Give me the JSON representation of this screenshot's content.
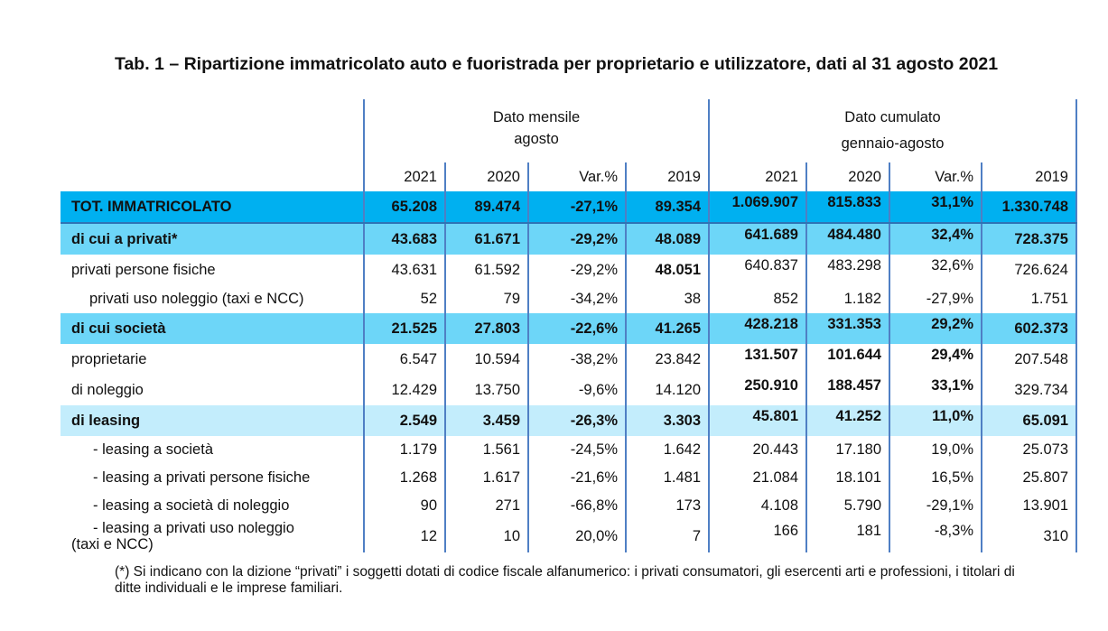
{
  "title": "Tab. 1 – Ripartizione immatricolato auto e fuoristrada per proprietario e utilizzatore, dati al 31 agosto 2021",
  "header": {
    "monthly": "Dato mensile agosto",
    "monthly_l1": "Dato mensile",
    "monthly_l2": "agosto",
    "cumulative_l1": "Dato cumulato",
    "cumulative_l2": "gennaio-agosto",
    "columns": [
      "2021",
      "2020",
      "Var.%",
      "2019",
      "2021",
      "2020",
      "Var.%",
      "2019"
    ]
  },
  "rows": [
    {
      "label": "TOT. IMMATRICOLATO",
      "style": "tot",
      "values": [
        "65.208",
        "89.474",
        "-27,1%",
        "89.354",
        "1.069.907",
        "815.833",
        "31,1%",
        "1.330.748"
      ]
    },
    {
      "label": "di cui a privati*",
      "style": "mid",
      "values": [
        "43.683",
        "61.671",
        "-29,2%",
        "48.089",
        "641.689",
        "484.480",
        "32,4%",
        "728.375"
      ]
    },
    {
      "label": "privati persone fisiche",
      "style": "",
      "values": [
        "43.631",
        "61.592",
        "-29,2%",
        "48.051",
        "640.837",
        "483.298",
        "32,6%",
        "726.624"
      ]
    },
    {
      "label": "privati uso noleggio (taxi e NCC)",
      "style": "ind1",
      "values": [
        "52",
        "79",
        "-34,2%",
        "38",
        "852",
        "1.182",
        "-27,9%",
        "1.751"
      ]
    },
    {
      "label": "di cui società",
      "style": "mid",
      "values": [
        "21.525",
        "27.803",
        "-22,6%",
        "41.265",
        "428.218",
        "331.353",
        "29,2%",
        "602.373"
      ]
    },
    {
      "label": "proprietarie",
      "style": "",
      "values": [
        "6.547",
        "10.594",
        "-38,2%",
        "23.842",
        "131.507",
        "101.644",
        "29,4%",
        "207.548"
      ]
    },
    {
      "label": "di noleggio",
      "style": "",
      "values": [
        "12.429",
        "13.750",
        "-9,6%",
        "14.120",
        "250.910",
        "188.457",
        "33,1%",
        "329.734"
      ]
    },
    {
      "label": "di leasing",
      "style": "light",
      "values": [
        "2.549",
        "3.459",
        "-26,3%",
        "3.303",
        "45.801",
        "41.252",
        "11,0%",
        "65.091"
      ]
    },
    {
      "label": "- leasing a società",
      "style": "ind2",
      "values": [
        "1.179",
        "1.561",
        "-24,5%",
        "1.642",
        "20.443",
        "17.180",
        "19,0%",
        "25.073"
      ]
    },
    {
      "label": "- leasing a privati persone fisiche",
      "style": "ind2",
      "values": [
        "1.268",
        "1.617",
        "-21,6%",
        "1.481",
        "21.084",
        "18.101",
        "16,5%",
        "25.807"
      ]
    },
    {
      "label": "- leasing a società di noleggio",
      "style": "ind2",
      "values": [
        "90",
        "271",
        "-66,8%",
        "173",
        "4.108",
        "5.790",
        "-29,1%",
        "13.901"
      ]
    },
    {
      "label": "- leasing a privati uso noleggio (taxi e NCC)",
      "label_l1": "- leasing a privati uso noleggio",
      "label_l2": "(taxi e NCC)",
      "style": "double",
      "values": [
        "12",
        "10",
        "20,0%",
        "7",
        "166",
        "181",
        "-8,3%",
        "310"
      ]
    }
  ],
  "footnote": "(*) Si indicano con la dizione “privati” i soggetti dotati di codice fiscale alfanumerico: i privati consumatori, gli esercenti arti e professioni, i titolari di ditte individuali e le imprese familiari."
}
